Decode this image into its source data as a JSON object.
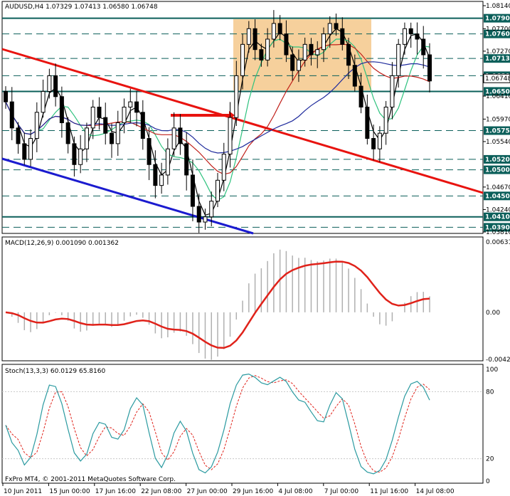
{
  "window": {
    "symbol_header": "AUDUSD,H4  1.07329 1.07413 1.06580 1.06748",
    "copyright": "FxPro MT4, © 2001-2011 MetaQuotes Software Corp."
  },
  "colors": {
    "level_line": "#0b5f5a",
    "level_box": "#0b5f5a",
    "candle": "#000000",
    "highlight_box": "#f5c88b",
    "red_trend": "#e8130f",
    "blue_trend": "#1b1bcf",
    "ma_black": "#000000",
    "ma_green": "#2ec27e",
    "ma_blue": "#1e2a9c",
    "ma_red": "#c0201a",
    "macd_line": "#e0221a",
    "macd_hist": "#b0b0b0",
    "stoch_main": "#2a9aa0",
    "stoch_signal": "#e0221a"
  },
  "price_axis": {
    "plain_ticks": [
      "1.08140",
      "1.07700",
      "1.07270",
      "1.06410",
      "1.05970",
      "1.05540",
      "1.04670",
      "1.04240",
      "1.03810"
    ],
    "level_tags": [
      "1.07900",
      "1.07600",
      "1.07130",
      "1.06800",
      "1.06500",
      "1.05750",
      "1.05200",
      "1.05000",
      "1.04500",
      "1.04100",
      "1.03900"
    ],
    "current_price": "1.06748"
  },
  "macd": {
    "header": "MACD(12,26,9) 0.001090 0.001362",
    "ticks": [
      "0.00631",
      "0.00",
      "-0.00422"
    ]
  },
  "stoch": {
    "header": "Stoch(13,3,3) 60.0129 65.8160",
    "ticks": [
      "100",
      "80",
      "20",
      "0"
    ]
  },
  "time_axis": [
    "10 Jun 2011",
    "15 Jun 00:00",
    "17 Jun 16:00",
    "22 Jun 08:00",
    "27 Jun 00:00",
    "29 Jun 16:00",
    "4 Jul 08:00",
    "7 Jul 00:00",
    "11 Jul 16:00",
    "14 Jul 08:00"
  ],
  "chart_data": {
    "type": "candlestick",
    "symbol": "AUDUSD",
    "timeframe": "H4",
    "open": 1.07329,
    "high": 1.07413,
    "low": 1.0658,
    "close": 1.06748,
    "horizontal_levels": [
      1.079,
      1.076,
      1.0713,
      1.068,
      1.065,
      1.0575,
      1.052,
      1.05,
      1.045,
      1.041,
      1.039
    ],
    "close_series": [
      1.063,
      1.058,
      1.055,
      1.052,
      1.056,
      1.061,
      1.065,
      1.068,
      1.064,
      1.059,
      1.055,
      1.051,
      1.054,
      1.058,
      1.062,
      1.06,
      1.057,
      1.055,
      1.059,
      1.062,
      1.063,
      1.061,
      1.056,
      1.051,
      1.047,
      1.049,
      1.054,
      1.058,
      1.055,
      1.049,
      1.043,
      1.04,
      1.041,
      1.044,
      1.048,
      1.053,
      1.06,
      1.068,
      1.074,
      1.077,
      1.073,
      1.071,
      1.075,
      1.078,
      1.076,
      1.072,
      1.069,
      1.071,
      1.074,
      1.072,
      1.073,
      1.076,
      1.078,
      1.077,
      1.074,
      1.07,
      1.066,
      1.062,
      1.056,
      1.054,
      1.057,
      1.062,
      1.068,
      1.074,
      1.077,
      1.076,
      1.075,
      1.072,
      1.067
    ]
  }
}
